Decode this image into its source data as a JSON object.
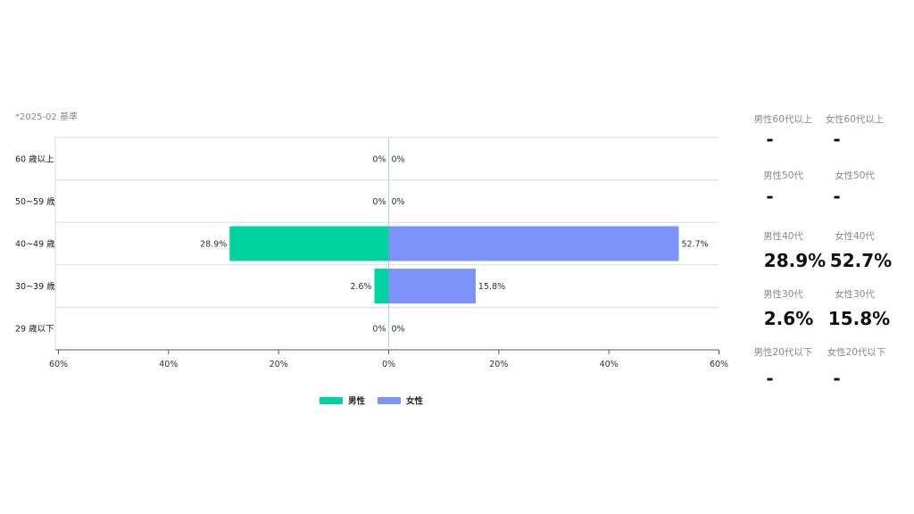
{
  "basis_label": "*2025-02 基準",
  "chart_data": {
    "type": "bar",
    "orientation": "horizontal-diverging",
    "categories": [
      "60 歳以上",
      "50~59 歳",
      "40~49 歳",
      "30~39 歳",
      "29 歳以下"
    ],
    "series": [
      {
        "name": "男性",
        "color": "#00d2a0",
        "values": [
          0,
          0,
          28.9,
          2.6,
          0
        ]
      },
      {
        "name": "女性",
        "color": "#7b93fb",
        "values": [
          0,
          0,
          52.7,
          15.8,
          0
        ]
      }
    ],
    "data_labels": {
      "男性": [
        "0%",
        "0%",
        "28.9%",
        "2.6%",
        "0%"
      ],
      "女性": [
        "0%",
        "0%",
        "52.7%",
        "15.8%",
        "0%"
      ]
    },
    "xlim": [
      -60,
      60
    ],
    "x_ticks": [
      -60,
      -40,
      -20,
      0,
      20,
      40,
      60
    ],
    "x_tick_labels": [
      "60%",
      "40%",
      "20%",
      "0%",
      "20%",
      "40%",
      "60%"
    ],
    "legend_position": "bottom-center",
    "grid": true
  },
  "stats": {
    "row60": {
      "male_label": "男性60代以上",
      "female_label": "女性60代以上",
      "male_value": "-",
      "female_value": "-"
    },
    "row50": {
      "male_label": "男性50代",
      "female_label": "女性50代",
      "male_value": "-",
      "female_value": "-"
    },
    "row40": {
      "male_label": "男性40代",
      "female_label": "女性40代",
      "male_value": "28.9%",
      "female_value": "52.7%"
    },
    "row30": {
      "male_label": "男性30代",
      "female_label": "女性30代",
      "male_value": "2.6%",
      "female_value": "15.8%"
    },
    "row20": {
      "male_label": "男性20代以下",
      "female_label": "女性20代以下",
      "male_value": "-",
      "female_value": "-"
    }
  }
}
